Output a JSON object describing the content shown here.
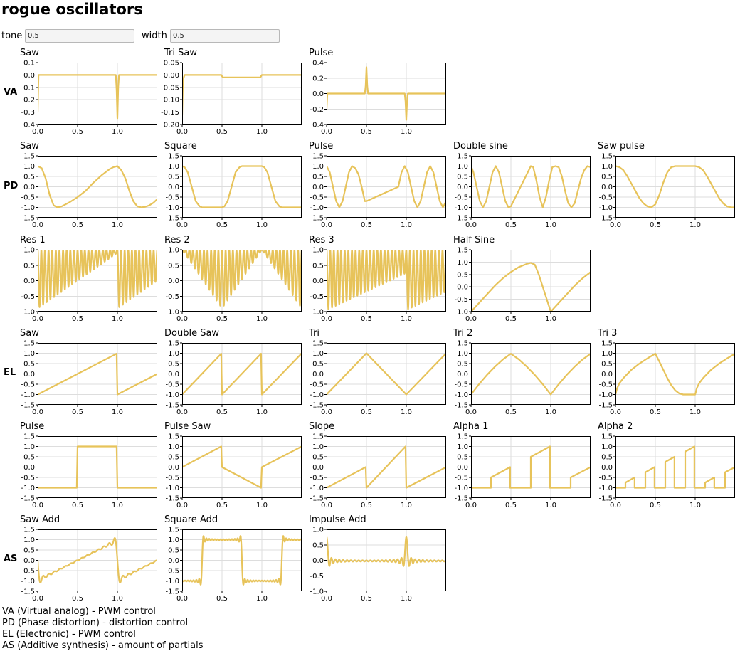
{
  "page": {
    "title": "rogue oscillators"
  },
  "controls": {
    "tone": {
      "label": "tone",
      "value": "0.5"
    },
    "width": {
      "label": "width",
      "value": "0.5"
    }
  },
  "rows": [
    {
      "label": "VA"
    },
    {
      "label": "PD"
    },
    {
      "label": ""
    },
    {
      "label": "EL"
    },
    {
      "label": ""
    },
    {
      "label": "AS"
    }
  ],
  "legend": [
    "VA (Virtual analog) - PWM control",
    "PD (Phase distortion) - distortion control",
    "EL (Electronic) - PWM control",
    "AS (Additive synthesis) - amount of partials"
  ],
  "colors": {
    "wave": "#e7c35a",
    "grid": "#dddddd",
    "frame": "#000000"
  },
  "chart_data": [
    {
      "type": "line",
      "title": "Saw",
      "row": 0,
      "col": 0,
      "xlim": [
        0,
        1.5
      ],
      "ylim": [
        -0.4,
        0.1
      ],
      "xticks": [
        "0.0",
        "0.5",
        "1.0"
      ],
      "yticks": [
        "0.1",
        "0.0",
        "-0.1",
        "-0.2",
        "-0.3",
        "-0.4"
      ],
      "x": [
        0,
        0.01,
        0.03,
        0.98,
        0.99,
        1.0,
        1.01,
        1.02,
        1.5
      ],
      "y": [
        -0.3,
        0.0,
        0.0,
        0.0,
        -0.12,
        -0.35,
        -0.1,
        0.0,
        0.0
      ]
    },
    {
      "type": "line",
      "title": "Tri Saw",
      "row": 0,
      "col": 1,
      "xlim": [
        0,
        1.5
      ],
      "ylim": [
        -0.2,
        0.05
      ],
      "xticks": [
        "0.0",
        "0.5",
        "1.0"
      ],
      "yticks": [
        "0.05",
        "0.00",
        "-0.05",
        "-0.10",
        "-0.15",
        "-0.20"
      ],
      "x": [
        0,
        0.01,
        0.03,
        0.49,
        0.51,
        0.98,
        1.0,
        1.5
      ],
      "y": [
        -0.16,
        -0.02,
        0.0,
        0.0,
        -0.01,
        -0.01,
        0.0,
        0.0
      ]
    },
    {
      "type": "line",
      "title": "Pulse",
      "row": 0,
      "col": 2,
      "xlim": [
        0,
        1.5
      ],
      "ylim": [
        -0.4,
        0.4
      ],
      "xticks": [
        "0.0",
        "0.5",
        "1.0"
      ],
      "yticks": [
        "0.4",
        "0.2",
        "0.0",
        "-0.2",
        "-0.4"
      ],
      "x": [
        0,
        0.01,
        0.03,
        0.48,
        0.49,
        0.5,
        0.51,
        0.52,
        0.98,
        0.99,
        1.0,
        1.01,
        1.02,
        1.5
      ],
      "y": [
        -0.2,
        0.0,
        0.0,
        0.0,
        0.1,
        0.34,
        0.1,
        0.0,
        0.0,
        -0.1,
        -0.34,
        -0.1,
        0.0,
        0.0
      ]
    },
    {
      "type": "line",
      "title": "Saw",
      "row": 1,
      "col": 0,
      "xlim": [
        0,
        1.5
      ],
      "ylim": [
        -1.5,
        1.5
      ],
      "xticks": [
        "0.0",
        "0.5",
        "1.0"
      ],
      "yticks": [
        "1.5",
        "1.0",
        "0.5",
        "0.0",
        "-0.5",
        "-1.0",
        "-1.5"
      ],
      "x": [
        0,
        0.05,
        0.1,
        0.15,
        0.2,
        0.25,
        0.3,
        0.4,
        0.5,
        0.6,
        0.7,
        0.8,
        0.9,
        0.95,
        1.0,
        1.05,
        1.1,
        1.15,
        1.2,
        1.25,
        1.3,
        1.35,
        1.4,
        1.45,
        1.5
      ],
      "y": [
        1.0,
        0.9,
        0.4,
        -0.4,
        -0.9,
        -1.0,
        -0.95,
        -0.75,
        -0.5,
        -0.2,
        0.2,
        0.55,
        0.85,
        0.95,
        1.0,
        0.8,
        0.4,
        -0.2,
        -0.7,
        -0.95,
        -1.0,
        -0.97,
        -0.9,
        -0.78,
        -0.6
      ]
    },
    {
      "type": "line",
      "title": "Square",
      "row": 1,
      "col": 1,
      "xlim": [
        0,
        1.5
      ],
      "ylim": [
        -1.5,
        1.5
      ],
      "xticks": [
        "0.0",
        "0.5",
        "1.0"
      ],
      "yticks": [
        "1.5",
        "1.0",
        "0.5",
        "0.0",
        "-0.5",
        "-1.0",
        "-1.5"
      ],
      "x": [
        0,
        0.03,
        0.07,
        0.12,
        0.17,
        0.22,
        0.25,
        0.5,
        0.53,
        0.57,
        0.62,
        0.67,
        0.72,
        0.75,
        1.0,
        1.03,
        1.07,
        1.12,
        1.17,
        1.22,
        1.25,
        1.5
      ],
      "y": [
        1.0,
        0.95,
        0.7,
        0.0,
        -0.7,
        -0.95,
        -1.0,
        -1.0,
        -0.95,
        -0.7,
        0.0,
        0.7,
        0.95,
        1.0,
        1.0,
        0.95,
        0.7,
        0.0,
        -0.7,
        -0.95,
        -1.0,
        -1.0
      ]
    },
    {
      "type": "line",
      "title": "Pulse",
      "row": 1,
      "col": 2,
      "xlim": [
        0,
        1.5
      ],
      "ylim": [
        -1.5,
        1.5
      ],
      "xticks": [
        "0.0",
        "0.5",
        "1.0"
      ],
      "yticks": [
        "1.5",
        "1.0",
        "0.5",
        "0.0",
        "-0.5",
        "-1.0",
        "-1.5"
      ],
      "x": [
        0,
        0.04,
        0.08,
        0.12,
        0.16,
        0.2,
        0.24,
        0.28,
        0.32,
        0.36,
        0.4,
        0.44,
        0.48,
        0.5,
        0.9,
        0.94,
        0.98,
        1.02,
        1.06,
        1.1,
        1.14,
        1.18,
        1.22,
        1.26,
        1.3,
        1.34,
        1.38,
        1.42,
        1.46,
        1.5
      ],
      "y": [
        1.0,
        0.7,
        0.0,
        -0.7,
        -1.0,
        -0.7,
        0.0,
        0.7,
        1.0,
        0.9,
        0.6,
        0.0,
        -0.7,
        -0.7,
        0.0,
        0.7,
        1.0,
        0.7,
        0.0,
        -0.7,
        -1.0,
        -0.7,
        0.0,
        0.7,
        1.0,
        0.7,
        0.0,
        -0.7,
        -1.0,
        -0.7
      ]
    },
    {
      "type": "line",
      "title": "Double sine",
      "row": 1,
      "col": 3,
      "xlim": [
        0,
        1.5
      ],
      "ylim": [
        -1.5,
        1.5
      ],
      "xticks": [
        "0.0",
        "0.5",
        "1.0"
      ],
      "yticks": [
        "1.5",
        "1.0",
        "0.5",
        "0.0",
        "-0.5",
        "-1.0",
        "-1.5"
      ],
      "x": [
        0,
        0.03,
        0.07,
        0.11,
        0.15,
        0.19,
        0.23,
        0.27,
        0.31,
        0.35,
        0.39,
        0.43,
        0.47,
        0.5,
        0.75,
        0.78,
        0.82,
        0.86,
        0.9,
        0.94,
        0.98,
        1.02,
        1.06,
        1.1,
        1.14,
        1.18,
        1.22,
        1.26,
        1.3,
        1.34,
        1.38,
        1.42,
        1.46,
        1.5
      ],
      "y": [
        1.0,
        0.7,
        0.0,
        -0.7,
        -1.0,
        -0.7,
        0.0,
        0.7,
        1.0,
        0.7,
        0.0,
        -0.7,
        -1.0,
        -0.95,
        1.0,
        0.95,
        0.3,
        -0.5,
        -1.0,
        -0.5,
        0.3,
        0.95,
        1.0,
        0.95,
        0.5,
        -0.2,
        -0.8,
        -1.0,
        -0.8,
        -0.2,
        0.4,
        0.8,
        1.0,
        0.95
      ]
    },
    {
      "type": "line",
      "title": "Saw pulse",
      "row": 1,
      "col": 4,
      "xlim": [
        0,
        1.5
      ],
      "ylim": [
        -1.5,
        1.5
      ],
      "xticks": [
        "0.0",
        "0.5",
        "1.0"
      ],
      "yticks": [
        "1.5",
        "1.0",
        "0.5",
        "0.0",
        "-0.5",
        "-1.0",
        "-1.5"
      ],
      "x": [
        0,
        0.05,
        0.1,
        0.15,
        0.2,
        0.25,
        0.3,
        0.35,
        0.4,
        0.45,
        0.5,
        0.55,
        0.6,
        0.65,
        0.7,
        0.75,
        1.0,
        1.05,
        1.1,
        1.15,
        1.2,
        1.25,
        1.3,
        1.35,
        1.4,
        1.45,
        1.5
      ],
      "y": [
        1.0,
        0.95,
        0.8,
        0.5,
        0.15,
        -0.2,
        -0.55,
        -0.8,
        -0.95,
        -1.0,
        -0.85,
        -0.4,
        0.2,
        0.7,
        0.95,
        1.0,
        1.0,
        0.95,
        0.8,
        0.5,
        0.15,
        -0.2,
        -0.55,
        -0.8,
        -0.95,
        -1.0,
        -1.0
      ]
    },
    {
      "type": "line",
      "title": "Res 1",
      "row": 2,
      "col": 0,
      "xlim": [
        0,
        1.5
      ],
      "ylim": [
        -1.0,
        1.0
      ],
      "xticks": [
        "0.0",
        "0.5",
        "1.0"
      ],
      "yticks": [
        "1.0",
        "0.5",
        "0.0",
        "-0.5",
        "-1.0"
      ],
      "pattern": "res1"
    },
    {
      "type": "line",
      "title": "Res 2",
      "row": 2,
      "col": 1,
      "xlim": [
        0,
        1.5
      ],
      "ylim": [
        -1.0,
        1.0
      ],
      "xticks": [
        "0.0",
        "0.5",
        "1.0"
      ],
      "yticks": [
        "1.0",
        "0.5",
        "0.0",
        "-0.5",
        "-1.0"
      ],
      "pattern": "res2"
    },
    {
      "type": "line",
      "title": "Res 3",
      "row": 2,
      "col": 2,
      "xlim": [
        0,
        1.5
      ],
      "ylim": [
        -1.0,
        1.0
      ],
      "xticks": [
        "0.0",
        "0.5",
        "1.0"
      ],
      "yticks": [
        "1.0",
        "0.5",
        "0.0",
        "-0.5",
        "-1.0"
      ],
      "pattern": "res3"
    },
    {
      "type": "line",
      "title": "Half Sine",
      "row": 2,
      "col": 3,
      "xlim": [
        0,
        1.5
      ],
      "ylim": [
        -1.0,
        1.5
      ],
      "xticks": [
        "0.0",
        "0.5",
        "1.0"
      ],
      "yticks": [
        "1.5",
        "1.0",
        "0.5",
        "0.0",
        "-0.5",
        "-1.0"
      ],
      "x": [
        0,
        0.1,
        0.2,
        0.3,
        0.4,
        0.5,
        0.6,
        0.7,
        0.75,
        0.8,
        0.85,
        0.9,
        0.95,
        1.0,
        1.1,
        1.2,
        1.3,
        1.4,
        1.5
      ],
      "y": [
        -1.0,
        -0.65,
        -0.3,
        0.05,
        0.35,
        0.6,
        0.8,
        0.93,
        0.97,
        0.9,
        0.5,
        0.0,
        -0.5,
        -1.0,
        -0.65,
        -0.3,
        0.05,
        0.35,
        0.6
      ]
    },
    {
      "type": "line",
      "title": "Saw",
      "row": 3,
      "col": 0,
      "xlim": [
        0,
        1.5
      ],
      "ylim": [
        -1.5,
        1.5
      ],
      "xticks": [
        "0.0",
        "0.5",
        "1.0"
      ],
      "yticks": [
        "1.5",
        "1.0",
        "0.5",
        "0.0",
        "-0.5",
        "-1.0",
        "-1.5"
      ],
      "x": [
        0,
        0.99,
        1.0,
        1.5
      ],
      "y": [
        -1.0,
        0.98,
        -1.0,
        0.0
      ]
    },
    {
      "type": "line",
      "title": "Double Saw",
      "row": 3,
      "col": 1,
      "xlim": [
        0,
        1.5
      ],
      "ylim": [
        -1.5,
        1.5
      ],
      "xticks": [
        "0.0",
        "0.5",
        "1.0"
      ],
      "yticks": [
        "1.5",
        "1.0",
        "0.5",
        "0.0",
        "-0.5",
        "-1.0",
        "-1.5"
      ],
      "x": [
        0,
        0.49,
        0.5,
        0.99,
        1.0,
        1.5
      ],
      "y": [
        -1.0,
        0.98,
        -1.0,
        0.98,
        -1.0,
        1.0
      ]
    },
    {
      "type": "line",
      "title": "Tri",
      "row": 3,
      "col": 2,
      "xlim": [
        0,
        1.5
      ],
      "ylim": [
        -1.5,
        1.5
      ],
      "xticks": [
        "0.0",
        "0.5",
        "1.0"
      ],
      "yticks": [
        "1.5",
        "1.0",
        "0.5",
        "0.0",
        "-0.5",
        "-1.0",
        "-1.5"
      ],
      "x": [
        0,
        0.5,
        1.0,
        1.5
      ],
      "y": [
        -1.0,
        1.0,
        -1.0,
        1.0
      ]
    },
    {
      "type": "line",
      "title": "Tri 2",
      "row": 3,
      "col": 3,
      "xlim": [
        0,
        1.5
      ],
      "ylim": [
        -1.5,
        1.5
      ],
      "xticks": [
        "0.0",
        "0.5",
        "1.0"
      ],
      "yticks": [
        "1.5",
        "1.0",
        "0.5",
        "0.0",
        "-0.5",
        "-1.0",
        "-1.5"
      ],
      "x": [
        0,
        0.1,
        0.2,
        0.3,
        0.4,
        0.5,
        0.6,
        0.7,
        0.8,
        0.9,
        1.0,
        1.1,
        1.2,
        1.3,
        1.4,
        1.5
      ],
      "y": [
        -1.0,
        -0.5,
        -0.05,
        0.35,
        0.7,
        0.98,
        0.7,
        0.35,
        -0.05,
        -0.5,
        -1.0,
        -0.5,
        -0.05,
        0.35,
        0.7,
        0.98
      ]
    },
    {
      "type": "line",
      "title": "Tri 3",
      "row": 3,
      "col": 4,
      "xlim": [
        0,
        1.5
      ],
      "ylim": [
        -1.5,
        1.5
      ],
      "xticks": [
        "0.0",
        "0.5",
        "1.0"
      ],
      "yticks": [
        "1.5",
        "1.0",
        "0.5",
        "0.0",
        "-0.5",
        "-1.0",
        "-1.5"
      ],
      "x": [
        0,
        0.02,
        0.05,
        0.1,
        0.2,
        0.3,
        0.4,
        0.5,
        0.55,
        0.6,
        0.65,
        0.7,
        0.75,
        0.8,
        0.85,
        0.9,
        0.95,
        1.0,
        1.02,
        1.05,
        1.1,
        1.2,
        1.3,
        1.4,
        1.5
      ],
      "y": [
        -1.0,
        -0.7,
        -0.45,
        -0.2,
        0.2,
        0.5,
        0.75,
        0.98,
        0.6,
        0.2,
        -0.2,
        -0.55,
        -0.8,
        -0.95,
        -1.0,
        -1.0,
        -1.0,
        -1.0,
        -0.7,
        -0.45,
        -0.2,
        0.2,
        0.5,
        0.75,
        0.98
      ]
    },
    {
      "type": "line",
      "title": "Pulse",
      "row": 4,
      "col": 0,
      "xlim": [
        0,
        1.5
      ],
      "ylim": [
        -1.5,
        1.5
      ],
      "xticks": [
        "0.0",
        "0.5",
        "1.0"
      ],
      "yticks": [
        "1.5",
        "1.0",
        "0.5",
        "0.0",
        "-0.5",
        "-1.0",
        "-1.5"
      ],
      "x": [
        0,
        0.49,
        0.5,
        0.99,
        1.0,
        1.5
      ],
      "y": [
        -1.0,
        -1.0,
        1.0,
        1.0,
        -1.0,
        -1.0
      ]
    },
    {
      "type": "line",
      "title": "Pulse Saw",
      "row": 4,
      "col": 1,
      "xlim": [
        0,
        1.5
      ],
      "ylim": [
        -1.5,
        1.5
      ],
      "xticks": [
        "0.0",
        "0.5",
        "1.0"
      ],
      "yticks": [
        "1.5",
        "1.0",
        "0.5",
        "0.0",
        "-0.5",
        "-1.0",
        "-1.5"
      ],
      "x": [
        0,
        0.49,
        0.5,
        0.99,
        1.0,
        1.5
      ],
      "y": [
        0.0,
        1.0,
        0.0,
        -1.0,
        0.0,
        1.0
      ]
    },
    {
      "type": "line",
      "title": "Slope",
      "row": 4,
      "col": 2,
      "xlim": [
        0,
        1.5
      ],
      "ylim": [
        -1.5,
        1.5
      ],
      "xticks": [
        "0.0",
        "0.5",
        "1.0"
      ],
      "yticks": [
        "1.5",
        "1.0",
        "0.5",
        "0.0",
        "-0.5",
        "-1.0",
        "-1.5"
      ],
      "x": [
        0,
        0.49,
        0.5,
        0.99,
        1.0,
        1.5
      ],
      "y": [
        -1.0,
        0.0,
        -1.0,
        1.0,
        -1.0,
        0.0
      ]
    },
    {
      "type": "line",
      "title": "Alpha 1",
      "row": 4,
      "col": 3,
      "xlim": [
        0,
        1.5
      ],
      "ylim": [
        -1.5,
        1.5
      ],
      "xticks": [
        "0.0",
        "0.5",
        "1.0"
      ],
      "yticks": [
        "1.5",
        "1.0",
        "0.5",
        "0.0",
        "-0.5",
        "-1.0",
        "-1.5"
      ],
      "x": [
        0,
        0.25,
        0.25,
        0.49,
        0.49,
        0.5,
        0.75,
        0.75,
        0.99,
        0.99,
        1.0,
        1.25,
        1.25,
        1.5
      ],
      "y": [
        -1.0,
        -1.0,
        -0.5,
        0.0,
        -1.0,
        -1.0,
        -1.0,
        0.5,
        1.0,
        -1.0,
        -1.0,
        -1.0,
        -0.5,
        0.0
      ]
    },
    {
      "type": "line",
      "title": "Alpha 2",
      "row": 4,
      "col": 4,
      "xlim": [
        0,
        1.5
      ],
      "ylim": [
        -1.5,
        1.5
      ],
      "xticks": [
        "0.0",
        "0.5",
        "1.0"
      ],
      "yticks": [
        "1.5",
        "1.0",
        "0.5",
        "0.0",
        "-0.5",
        "-1.0",
        "-1.5"
      ],
      "x": [
        0,
        0.125,
        0.125,
        0.24,
        0.24,
        0.375,
        0.375,
        0.49,
        0.49,
        0.625,
        0.625,
        0.74,
        0.74,
        0.875,
        0.875,
        0.99,
        0.99,
        1.125,
        1.125,
        1.24,
        1.24,
        1.375,
        1.375,
        1.5
      ],
      "y": [
        -1.0,
        -1.0,
        -0.75,
        -0.5,
        -1.0,
        -1.0,
        -0.25,
        0.0,
        -1.0,
        -1.0,
        0.25,
        0.5,
        -1.0,
        -1.0,
        0.75,
        1.0,
        -1.0,
        -1.0,
        -0.75,
        -0.5,
        -1.0,
        -1.0,
        -0.25,
        0.0
      ]
    },
    {
      "type": "line",
      "title": "Saw Add",
      "row": 5,
      "col": 0,
      "xlim": [
        0,
        1.5
      ],
      "ylim": [
        -1.5,
        1.5
      ],
      "xticks": [
        "0.0",
        "0.5",
        "1.0"
      ],
      "yticks": [
        "1.5",
        "1.0",
        "0.5",
        "0.0",
        "-0.5",
        "-1.0",
        "-1.5"
      ],
      "pattern": "sawadd"
    },
    {
      "type": "line",
      "title": "Square Add",
      "row": 5,
      "col": 1,
      "xlim": [
        0,
        1.5
      ],
      "ylim": [
        -1.5,
        1.5
      ],
      "xticks": [
        "0.0",
        "0.5",
        "1.0"
      ],
      "yticks": [
        "1.5",
        "1.0",
        "0.5",
        "0.0",
        "-0.5",
        "-1.0",
        "-1.5"
      ],
      "pattern": "squareadd"
    },
    {
      "type": "line",
      "title": "Impulse Add",
      "row": 5,
      "col": 2,
      "xlim": [
        0,
        1.5
      ],
      "ylim": [
        -1.0,
        1.0
      ],
      "xticks": [
        "0.0",
        "0.5",
        "1.0"
      ],
      "yticks": [
        "1.0",
        "0.5",
        "0.0",
        "-0.5",
        "-1.0"
      ],
      "pattern": "impulseadd"
    }
  ]
}
